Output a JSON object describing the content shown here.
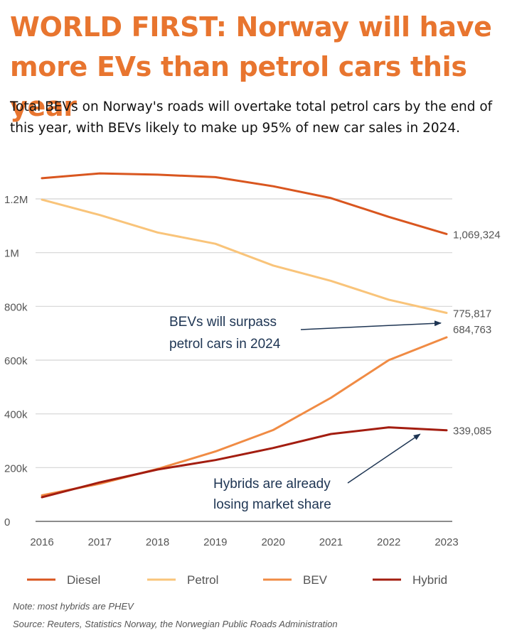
{
  "header": {
    "title": "WORLD FIRST: Norway will have more EVs than petrol cars this year",
    "subtitle": "Total BEVs on Norway's roads will overtake total petrol cars by the end of this year, with BEVs likely to make up 95% of new car sales in 2024."
  },
  "footer": {
    "note": "Note: most hybrids are PHEV",
    "source": "Source: Reuters, Statistics Norway, the Norwegian Public Roads Administration"
  },
  "colors": {
    "title": "#e8752f",
    "Diesel": "#d9561f",
    "Petrol": "#f9c47a",
    "BEV": "#f08b44",
    "Hybrid": "#a31d10",
    "annotation": "#1e3553"
  },
  "chart_data": {
    "type": "line",
    "x": [
      "2016",
      "2017",
      "2018",
      "2019",
      "2020",
      "2021",
      "2022",
      "2023"
    ],
    "ylim": [
      0,
      1400000
    ],
    "y_ticks": [
      0,
      200000,
      400000,
      600000,
      800000,
      1000000,
      1200000
    ],
    "y_tick_labels": [
      "0",
      "200k",
      "400k",
      "600k",
      "800k",
      "1M",
      "1.2M"
    ],
    "grid": true,
    "legend_position": "bottom",
    "series": [
      {
        "name": "Diesel",
        "values": [
          1277000,
          1295000,
          1290000,
          1281000,
          1247000,
          1203000,
          1133000,
          1069324
        ],
        "end_label": "1,069,324"
      },
      {
        "name": "Petrol",
        "values": [
          1197000,
          1140000,
          1075000,
          1033000,
          952000,
          895000,
          825000,
          775817
        ],
        "end_label": "775,817"
      },
      {
        "name": "BEV",
        "values": [
          97000,
          140000,
          195000,
          260000,
          340000,
          460000,
          600000,
          684763
        ],
        "end_label": "684,763"
      },
      {
        "name": "Hybrid",
        "values": [
          90000,
          145000,
          193000,
          228000,
          273000,
          325000,
          350000,
          339085
        ],
        "end_label": "339,085"
      }
    ],
    "annotations": [
      {
        "lines": [
          "BEVs will surpass",
          "petrol cars in 2024"
        ],
        "target_x": "2023",
        "target_y": 730000
      },
      {
        "lines": [
          "Hybrids are already",
          "losing market share"
        ],
        "target_x": "2022",
        "target_y": 338000
      }
    ]
  }
}
